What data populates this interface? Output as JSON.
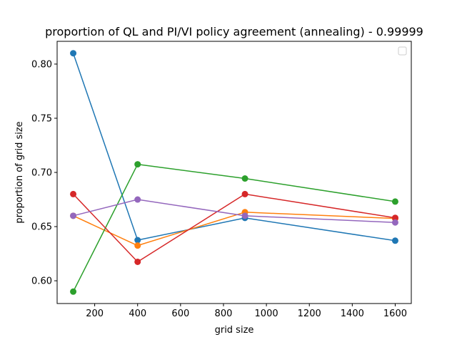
{
  "chart_data": {
    "type": "line",
    "title": "proportion of QL and PI/VI policy agreement (annealing) - 0.99999",
    "xlabel": "grid size",
    "ylabel": "proportion of grid size",
    "x": [
      100,
      400,
      900,
      1600
    ],
    "xlim": [
      25,
      1675
    ],
    "ylim": [
      0.579,
      0.821
    ],
    "xticks": [
      200,
      400,
      600,
      800,
      1000,
      1200,
      1400,
      1600
    ],
    "xtick_labels": [
      "200",
      "400",
      "600",
      "800",
      "1000",
      "1200",
      "1400",
      "1600"
    ],
    "yticks": [
      0.6,
      0.65,
      0.7,
      0.75,
      0.8
    ],
    "ytick_labels": [
      "0.60",
      "0.65",
      "0.70",
      "0.75",
      "0.80"
    ],
    "grid": false,
    "legend": "upper right (empty)",
    "series": [
      {
        "color": "#1f77b4",
        "values": [
          0.81,
          0.6375,
          0.658,
          0.637
        ]
      },
      {
        "color": "#ff7f0e",
        "values": [
          0.66,
          0.6325,
          0.6633,
          0.6575
        ]
      },
      {
        "color": "#2ca02c",
        "values": [
          0.59,
          0.7075,
          0.6944,
          0.6731
        ]
      },
      {
        "color": "#d62728",
        "values": [
          0.68,
          0.6175,
          0.68,
          0.6581
        ]
      },
      {
        "color": "#9467bd",
        "values": [
          0.66,
          0.675,
          0.66,
          0.6538
        ]
      }
    ]
  }
}
